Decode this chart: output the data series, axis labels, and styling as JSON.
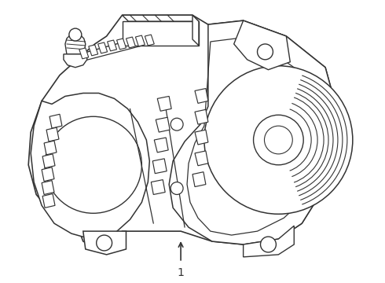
{
  "background_color": "#ffffff",
  "line_color": "#333333",
  "line_width": 1.0,
  "label_text": "1",
  "label_fontsize": 10,
  "fig_width": 4.9,
  "fig_height": 3.6,
  "dpi": 100
}
